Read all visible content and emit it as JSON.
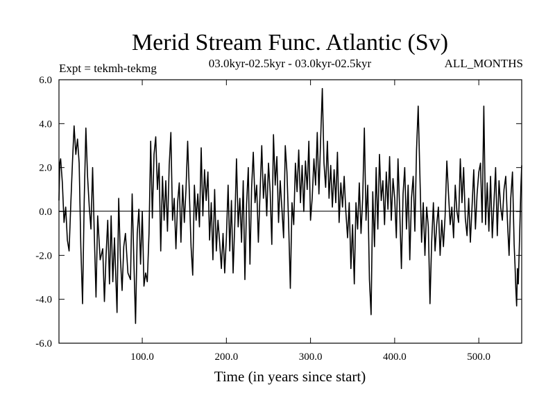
{
  "chart_data": {
    "type": "line",
    "title": "Merid Stream Func. Atlantic (Sv)",
    "experiment_label": "Expt = tekmh-tekmg",
    "period_label": "03.0kyr-02.5kyr - 03.0kyr-02.5kyr",
    "months_label": "ALL_MONTHS",
    "xlabel": "Time (in years since start)",
    "ylabel": "",
    "xlim": [
      1,
      551
    ],
    "ylim": [
      -6,
      6
    ],
    "x_ticks": [
      {
        "value": 100,
        "label": "100.0"
      },
      {
        "value": 200,
        "label": "200.0"
      },
      {
        "value": 300,
        "label": "300.0"
      },
      {
        "value": 400,
        "label": "400.0"
      },
      {
        "value": 500,
        "label": "500.0"
      }
    ],
    "y_ticks": [
      {
        "value": 6,
        "label": "6.0"
      },
      {
        "value": 4,
        "label": "4.0"
      },
      {
        "value": 2,
        "label": "2.0"
      },
      {
        "value": 0,
        "label": "0.0"
      },
      {
        "value": -2,
        "label": "-2.0"
      },
      {
        "value": -4,
        "label": "-4.0"
      },
      {
        "value": -6,
        "label": "-6.0"
      }
    ],
    "zero_line": 0,
    "series": [
      {
        "name": "tekmh-tekmg",
        "color": "#000000",
        "points": [
          [
            1,
            0.5
          ],
          [
            2,
            2.2
          ],
          [
            3,
            2.4
          ],
          [
            5,
            1.3
          ],
          [
            7,
            -0.5
          ],
          [
            9,
            0.2
          ],
          [
            11,
            -1.3
          ],
          [
            13,
            -1.8
          ],
          [
            15,
            0.3
          ],
          [
            17,
            2.2
          ],
          [
            19,
            3.9
          ],
          [
            21,
            2.6
          ],
          [
            23,
            3.3
          ],
          [
            25,
            2.2
          ],
          [
            27,
            -1.6
          ],
          [
            29,
            -4.2
          ],
          [
            31,
            0.5
          ],
          [
            33,
            3.8
          ],
          [
            35,
            1.6
          ],
          [
            37,
            0.2
          ],
          [
            39,
            -0.8
          ],
          [
            41,
            2.0
          ],
          [
            43,
            -1.0
          ],
          [
            45,
            -3.9
          ],
          [
            47,
            -0.2
          ],
          [
            50,
            -2.2
          ],
          [
            53,
            -1.7
          ],
          [
            55,
            -4.1
          ],
          [
            57,
            -2.0
          ],
          [
            59,
            -0.4
          ],
          [
            61,
            -3.3
          ],
          [
            63,
            -0.2
          ],
          [
            65,
            -3.2
          ],
          [
            67,
            -1.2
          ],
          [
            70,
            -4.6
          ],
          [
            72,
            0.6
          ],
          [
            74,
            -2.1
          ],
          [
            76,
            -3.6
          ],
          [
            78,
            -1.6
          ],
          [
            80,
            -1.0
          ],
          [
            83,
            -2.8
          ],
          [
            86,
            -3.1
          ],
          [
            88,
            0.8
          ],
          [
            90,
            -2.2
          ],
          [
            92,
            -5.1
          ],
          [
            94,
            -1.0
          ],
          [
            96,
            0.1
          ],
          [
            98,
            -2.4
          ],
          [
            100,
            0.0
          ],
          [
            102,
            -3.4
          ],
          [
            104,
            -2.8
          ],
          [
            106,
            -3.2
          ],
          [
            108,
            -1.0
          ],
          [
            110,
            3.2
          ],
          [
            112,
            -0.3
          ],
          [
            114,
            2.6
          ],
          [
            116,
            3.4
          ],
          [
            118,
            1.0
          ],
          [
            120,
            2.2
          ],
          [
            122,
            -1.8
          ],
          [
            124,
            1.6
          ],
          [
            126,
            -0.4
          ],
          [
            128,
            1.4
          ],
          [
            130,
            -0.9
          ],
          [
            132,
            2.1
          ],
          [
            134,
            3.6
          ],
          [
            136,
            -0.4
          ],
          [
            138,
            0.6
          ],
          [
            140,
            -1.7
          ],
          [
            142,
            0.4
          ],
          [
            144,
            1.3
          ],
          [
            146,
            -1.4
          ],
          [
            148,
            1.2
          ],
          [
            150,
            -0.5
          ],
          [
            152,
            1.0
          ],
          [
            154,
            3.2
          ],
          [
            156,
            0.8
          ],
          [
            158,
            -1.6
          ],
          [
            160,
            -2.9
          ],
          [
            162,
            1.2
          ],
          [
            164,
            -0.4
          ],
          [
            166,
            0.8
          ],
          [
            168,
            -0.7
          ],
          [
            170,
            2.9
          ],
          [
            172,
            -0.2
          ],
          [
            174,
            1.9
          ],
          [
            176,
            0.5
          ],
          [
            178,
            1.8
          ],
          [
            180,
            -1.3
          ],
          [
            182,
            0.4
          ],
          [
            184,
            -2.2
          ],
          [
            186,
            1.0
          ],
          [
            188,
            -1.8
          ],
          [
            190,
            -0.4
          ],
          [
            192,
            -1.4
          ],
          [
            194,
            -2.6
          ],
          [
            196,
            -1.0
          ],
          [
            198,
            -2.8
          ],
          [
            200,
            -1.2
          ],
          [
            202,
            1.2
          ],
          [
            204,
            -1.8
          ],
          [
            206,
            0.5
          ],
          [
            208,
            -2.8
          ],
          [
            210,
            -0.5
          ],
          [
            212,
            2.4
          ],
          [
            214,
            -0.7
          ],
          [
            216,
            0.6
          ],
          [
            218,
            -1.4
          ],
          [
            220,
            1.4
          ],
          [
            222,
            -3.1
          ],
          [
            224,
            0.3
          ],
          [
            226,
            2.0
          ],
          [
            228,
            -2.4
          ],
          [
            230,
            1.1
          ],
          [
            232,
            2.7
          ],
          [
            234,
            0.4
          ],
          [
            236,
            1.2
          ],
          [
            238,
            -1.4
          ],
          [
            240,
            0.8
          ],
          [
            242,
            3.0
          ],
          [
            244,
            0.6
          ],
          [
            246,
            1.7
          ],
          [
            248,
            -0.2
          ],
          [
            250,
            2.2
          ],
          [
            252,
            0.9
          ],
          [
            254,
            -1.5
          ],
          [
            256,
            3.5
          ],
          [
            258,
            1.2
          ],
          [
            260,
            2.5
          ],
          [
            262,
            -0.5
          ],
          [
            264,
            1.4
          ],
          [
            266,
            0.1
          ],
          [
            268,
            -1.2
          ],
          [
            270,
            3.0
          ],
          [
            272,
            1.8
          ],
          [
            274,
            -0.6
          ],
          [
            276,
            -3.5
          ],
          [
            278,
            0.4
          ],
          [
            280,
            -0.6
          ],
          [
            282,
            2.2
          ],
          [
            284,
            0.9
          ],
          [
            286,
            2.8
          ],
          [
            288,
            0.4
          ],
          [
            290,
            2.1
          ],
          [
            292,
            0.0
          ],
          [
            294,
            2.3
          ],
          [
            296,
            1.0
          ],
          [
            298,
            3.2
          ],
          [
            300,
            -0.4
          ],
          [
            302,
            0.6
          ],
          [
            304,
            2.4
          ],
          [
            306,
            1.2
          ],
          [
            308,
            3.6
          ],
          [
            310,
            0.8
          ],
          [
            312,
            3.3
          ],
          [
            314,
            5.6
          ],
          [
            316,
            2.2
          ],
          [
            318,
            1.1
          ],
          [
            320,
            3.2
          ],
          [
            322,
            0.6
          ],
          [
            324,
            2.1
          ],
          [
            326,
            0.2
          ],
          [
            328,
            1.9
          ],
          [
            330,
            0.4
          ],
          [
            332,
            2.7
          ],
          [
            334,
            -0.5
          ],
          [
            336,
            1.3
          ],
          [
            338,
            0.2
          ],
          [
            340,
            1.6
          ],
          [
            342,
            0.0
          ],
          [
            344,
            -1.2
          ],
          [
            346,
            0.4
          ],
          [
            348,
            -2.6
          ],
          [
            350,
            -0.6
          ],
          [
            352,
            -3.3
          ],
          [
            354,
            0.4
          ],
          [
            356,
            -0.8
          ],
          [
            358,
            1.3
          ],
          [
            360,
            -1.0
          ],
          [
            362,
            0.6
          ],
          [
            364,
            3.8
          ],
          [
            366,
            -0.4
          ],
          [
            368,
            1.2
          ],
          [
            370,
            -3.1
          ],
          [
            372,
            -4.7
          ],
          [
            374,
            0.9
          ],
          [
            376,
            -1.6
          ],
          [
            378,
            2.0
          ],
          [
            380,
            -0.8
          ],
          [
            382,
            2.6
          ],
          [
            384,
            0.5
          ],
          [
            386,
            1.4
          ],
          [
            388,
            -0.6
          ],
          [
            390,
            1.8
          ],
          [
            392,
            0.1
          ],
          [
            394,
            2.5
          ],
          [
            396,
            -0.4
          ],
          [
            398,
            1.5
          ],
          [
            400,
            0.6
          ],
          [
            402,
            -1.2
          ],
          [
            404,
            2.4
          ],
          [
            406,
            0.0
          ],
          [
            408,
            -2.6
          ],
          [
            410,
            0.8
          ],
          [
            412,
            2.0
          ],
          [
            414,
            -0.8
          ],
          [
            416,
            1.2
          ],
          [
            418,
            -2.2
          ],
          [
            420,
            0.6
          ],
          [
            422,
            1.6
          ],
          [
            424,
            -0.9
          ],
          [
            426,
            2.8
          ],
          [
            428,
            4.8
          ],
          [
            430,
            1.6
          ],
          [
            432,
            -1.4
          ],
          [
            434,
            0.4
          ],
          [
            436,
            -2.0
          ],
          [
            438,
            0.2
          ],
          [
            440,
            -0.7
          ],
          [
            442,
            -4.2
          ],
          [
            444,
            -1.4
          ],
          [
            446,
            0.4
          ],
          [
            448,
            -1.8
          ],
          [
            450,
            -0.6
          ],
          [
            452,
            0.2
          ],
          [
            454,
            -2.0
          ],
          [
            456,
            -0.4
          ],
          [
            458,
            -1.6
          ],
          [
            460,
            -0.2
          ],
          [
            462,
            2.3
          ],
          [
            464,
            0.8
          ],
          [
            466,
            -0.6
          ],
          [
            468,
            0.2
          ],
          [
            470,
            -1.2
          ],
          [
            472,
            1.2
          ],
          [
            474,
            0.0
          ],
          [
            476,
            -0.5
          ],
          [
            478,
            2.4
          ],
          [
            480,
            0.4
          ],
          [
            482,
            2.0
          ],
          [
            484,
            -0.3
          ],
          [
            486,
            -1.1
          ],
          [
            488,
            0.6
          ],
          [
            490,
            -1.4
          ],
          [
            492,
            0.2
          ],
          [
            494,
            1.9
          ],
          [
            496,
            -0.8
          ],
          [
            498,
            0.8
          ],
          [
            500,
            1.8
          ],
          [
            502,
            2.2
          ],
          [
            504,
            -0.5
          ],
          [
            506,
            4.8
          ],
          [
            508,
            -0.6
          ],
          [
            510,
            1.3
          ],
          [
            512,
            -0.9
          ],
          [
            514,
            1.6
          ],
          [
            516,
            -1.2
          ],
          [
            518,
            0.4
          ],
          [
            520,
            2.0
          ],
          [
            522,
            -1.1
          ],
          [
            524,
            1.4
          ],
          [
            526,
            0.2
          ],
          [
            528,
            -0.4
          ],
          [
            530,
            1.0
          ],
          [
            532,
            1.6
          ],
          [
            534,
            -0.4
          ],
          [
            536,
            -2.0
          ],
          [
            538,
            0.6
          ],
          [
            540,
            1.8
          ],
          [
            542,
            -1.5
          ],
          [
            543,
            -2.4
          ],
          [
            544,
            -3.5
          ],
          [
            545,
            -4.3
          ],
          [
            546,
            -2.6
          ],
          [
            547,
            -3.3
          ],
          [
            548,
            -1.8
          ],
          [
            549,
            -0.4
          ],
          [
            550,
            1.1
          ],
          [
            551,
            2.1
          ]
        ]
      }
    ]
  }
}
